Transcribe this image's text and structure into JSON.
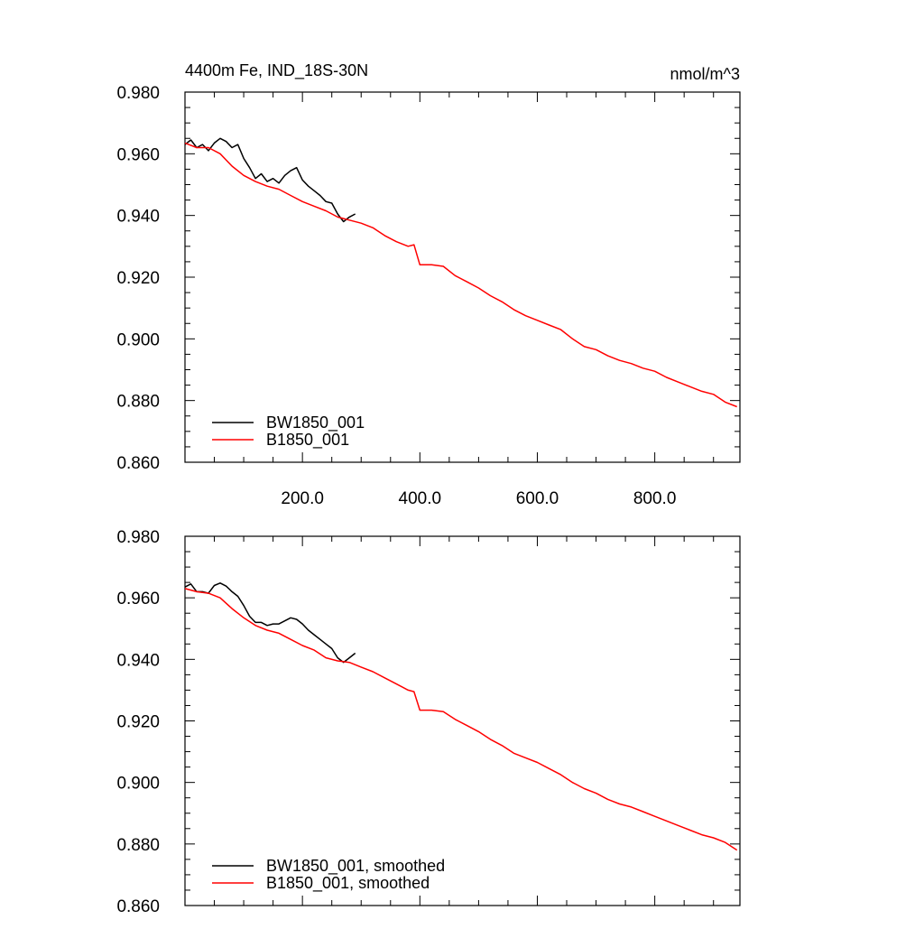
{
  "chart_data": [
    {
      "type": "line",
      "title": "4400m Fe, IND_18S-30N",
      "units": "nmol/m^3",
      "xlim": [
        0,
        945
      ],
      "ylim": [
        0.86,
        0.98
      ],
      "xticks": [
        200,
        400,
        600,
        800
      ],
      "xtick_labels": [
        "200.0",
        "400.0",
        "600.0",
        "800.0"
      ],
      "yticks": [
        0.86,
        0.88,
        0.9,
        0.92,
        0.94,
        0.96,
        0.98
      ],
      "ytick_labels": [
        "0.860",
        "0.880",
        "0.900",
        "0.920",
        "0.940",
        "0.960",
        "0.980"
      ],
      "legend_position": "bottom-left",
      "series": [
        {
          "name": "BW1850_001",
          "color": "#000000",
          "x": [
            0,
            10,
            20,
            30,
            40,
            50,
            60,
            70,
            80,
            90,
            100,
            110,
            120,
            130,
            140,
            150,
            160,
            170,
            180,
            190,
            200,
            210,
            220,
            230,
            240,
            250,
            260,
            270,
            280,
            290
          ],
          "y": [
            0.963,
            0.9645,
            0.962,
            0.963,
            0.961,
            0.9635,
            0.965,
            0.964,
            0.962,
            0.963,
            0.9585,
            0.9555,
            0.952,
            0.9535,
            0.951,
            0.952,
            0.9505,
            0.953,
            0.9545,
            0.9555,
            0.9515,
            0.9495,
            0.948,
            0.9465,
            0.9445,
            0.944,
            0.9405,
            0.938,
            0.9395,
            0.9405
          ]
        },
        {
          "name": "B1850_001",
          "color": "#ff0000",
          "x": [
            0,
            20,
            40,
            60,
            80,
            100,
            120,
            140,
            160,
            180,
            200,
            220,
            240,
            260,
            280,
            300,
            320,
            340,
            360,
            380,
            390,
            400,
            420,
            440,
            460,
            480,
            500,
            520,
            540,
            560,
            580,
            600,
            620,
            640,
            660,
            680,
            700,
            720,
            740,
            760,
            780,
            800,
            820,
            840,
            860,
            880,
            900,
            920,
            940
          ],
          "y": [
            0.9635,
            0.962,
            0.962,
            0.96,
            0.956,
            0.953,
            0.951,
            0.9495,
            0.9485,
            0.9465,
            0.9445,
            0.943,
            0.9415,
            0.9395,
            0.9385,
            0.9375,
            0.936,
            0.9335,
            0.9315,
            0.93,
            0.9305,
            0.924,
            0.924,
            0.9235,
            0.9205,
            0.9185,
            0.9165,
            0.914,
            0.912,
            0.9095,
            0.9075,
            0.906,
            0.9045,
            0.903,
            0.9,
            0.8975,
            0.8965,
            0.8945,
            0.893,
            0.892,
            0.8905,
            0.8895,
            0.8875,
            0.886,
            0.8845,
            0.883,
            0.882,
            0.8795,
            0.878
          ]
        }
      ]
    },
    {
      "type": "line",
      "title": "",
      "units": "",
      "xlim": [
        0,
        945
      ],
      "ylim": [
        0.86,
        0.98
      ],
      "xticks": [
        200,
        400,
        600,
        800
      ],
      "xtick_labels": [],
      "yticks": [
        0.86,
        0.88,
        0.9,
        0.92,
        0.94,
        0.96,
        0.98
      ],
      "ytick_labels": [
        "0.860",
        "0.880",
        "0.900",
        "0.920",
        "0.940",
        "0.960",
        "0.980"
      ],
      "legend_position": "bottom-left",
      "series": [
        {
          "name": "BW1850_001, smoothed",
          "color": "#000000",
          "x": [
            0,
            10,
            20,
            30,
            40,
            50,
            60,
            70,
            80,
            90,
            100,
            110,
            120,
            130,
            140,
            150,
            160,
            170,
            180,
            190,
            200,
            210,
            220,
            230,
            240,
            250,
            260,
            270,
            280,
            290
          ],
          "y": [
            0.9635,
            0.9645,
            0.962,
            0.962,
            0.9615,
            0.964,
            0.9648,
            0.9638,
            0.962,
            0.9605,
            0.9575,
            0.954,
            0.952,
            0.952,
            0.951,
            0.9515,
            0.9515,
            0.9525,
            0.9535,
            0.953,
            0.9515,
            0.9495,
            0.948,
            0.9465,
            0.945,
            0.9435,
            0.9405,
            0.939,
            0.9405,
            0.942
          ]
        },
        {
          "name": "B1850_001, smoothed",
          "color": "#ff0000",
          "x": [
            0,
            20,
            40,
            60,
            80,
            100,
            120,
            140,
            160,
            180,
            200,
            220,
            240,
            260,
            280,
            300,
            320,
            340,
            360,
            380,
            390,
            400,
            420,
            440,
            460,
            480,
            500,
            520,
            540,
            560,
            580,
            600,
            620,
            640,
            660,
            680,
            700,
            720,
            740,
            760,
            780,
            800,
            820,
            840,
            860,
            880,
            900,
            920,
            940
          ],
          "y": [
            0.963,
            0.962,
            0.9615,
            0.96,
            0.9565,
            0.9535,
            0.951,
            0.9495,
            0.9485,
            0.9465,
            0.9445,
            0.943,
            0.9405,
            0.9395,
            0.939,
            0.9375,
            0.936,
            0.934,
            0.932,
            0.93,
            0.9295,
            0.9235,
            0.9235,
            0.923,
            0.9205,
            0.9185,
            0.9165,
            0.914,
            0.912,
            0.9095,
            0.908,
            0.9065,
            0.9045,
            0.9025,
            0.9,
            0.898,
            0.8965,
            0.8945,
            0.893,
            0.892,
            0.8905,
            0.889,
            0.8875,
            0.886,
            0.8845,
            0.883,
            0.882,
            0.8805,
            0.878
          ]
        }
      ]
    }
  ]
}
